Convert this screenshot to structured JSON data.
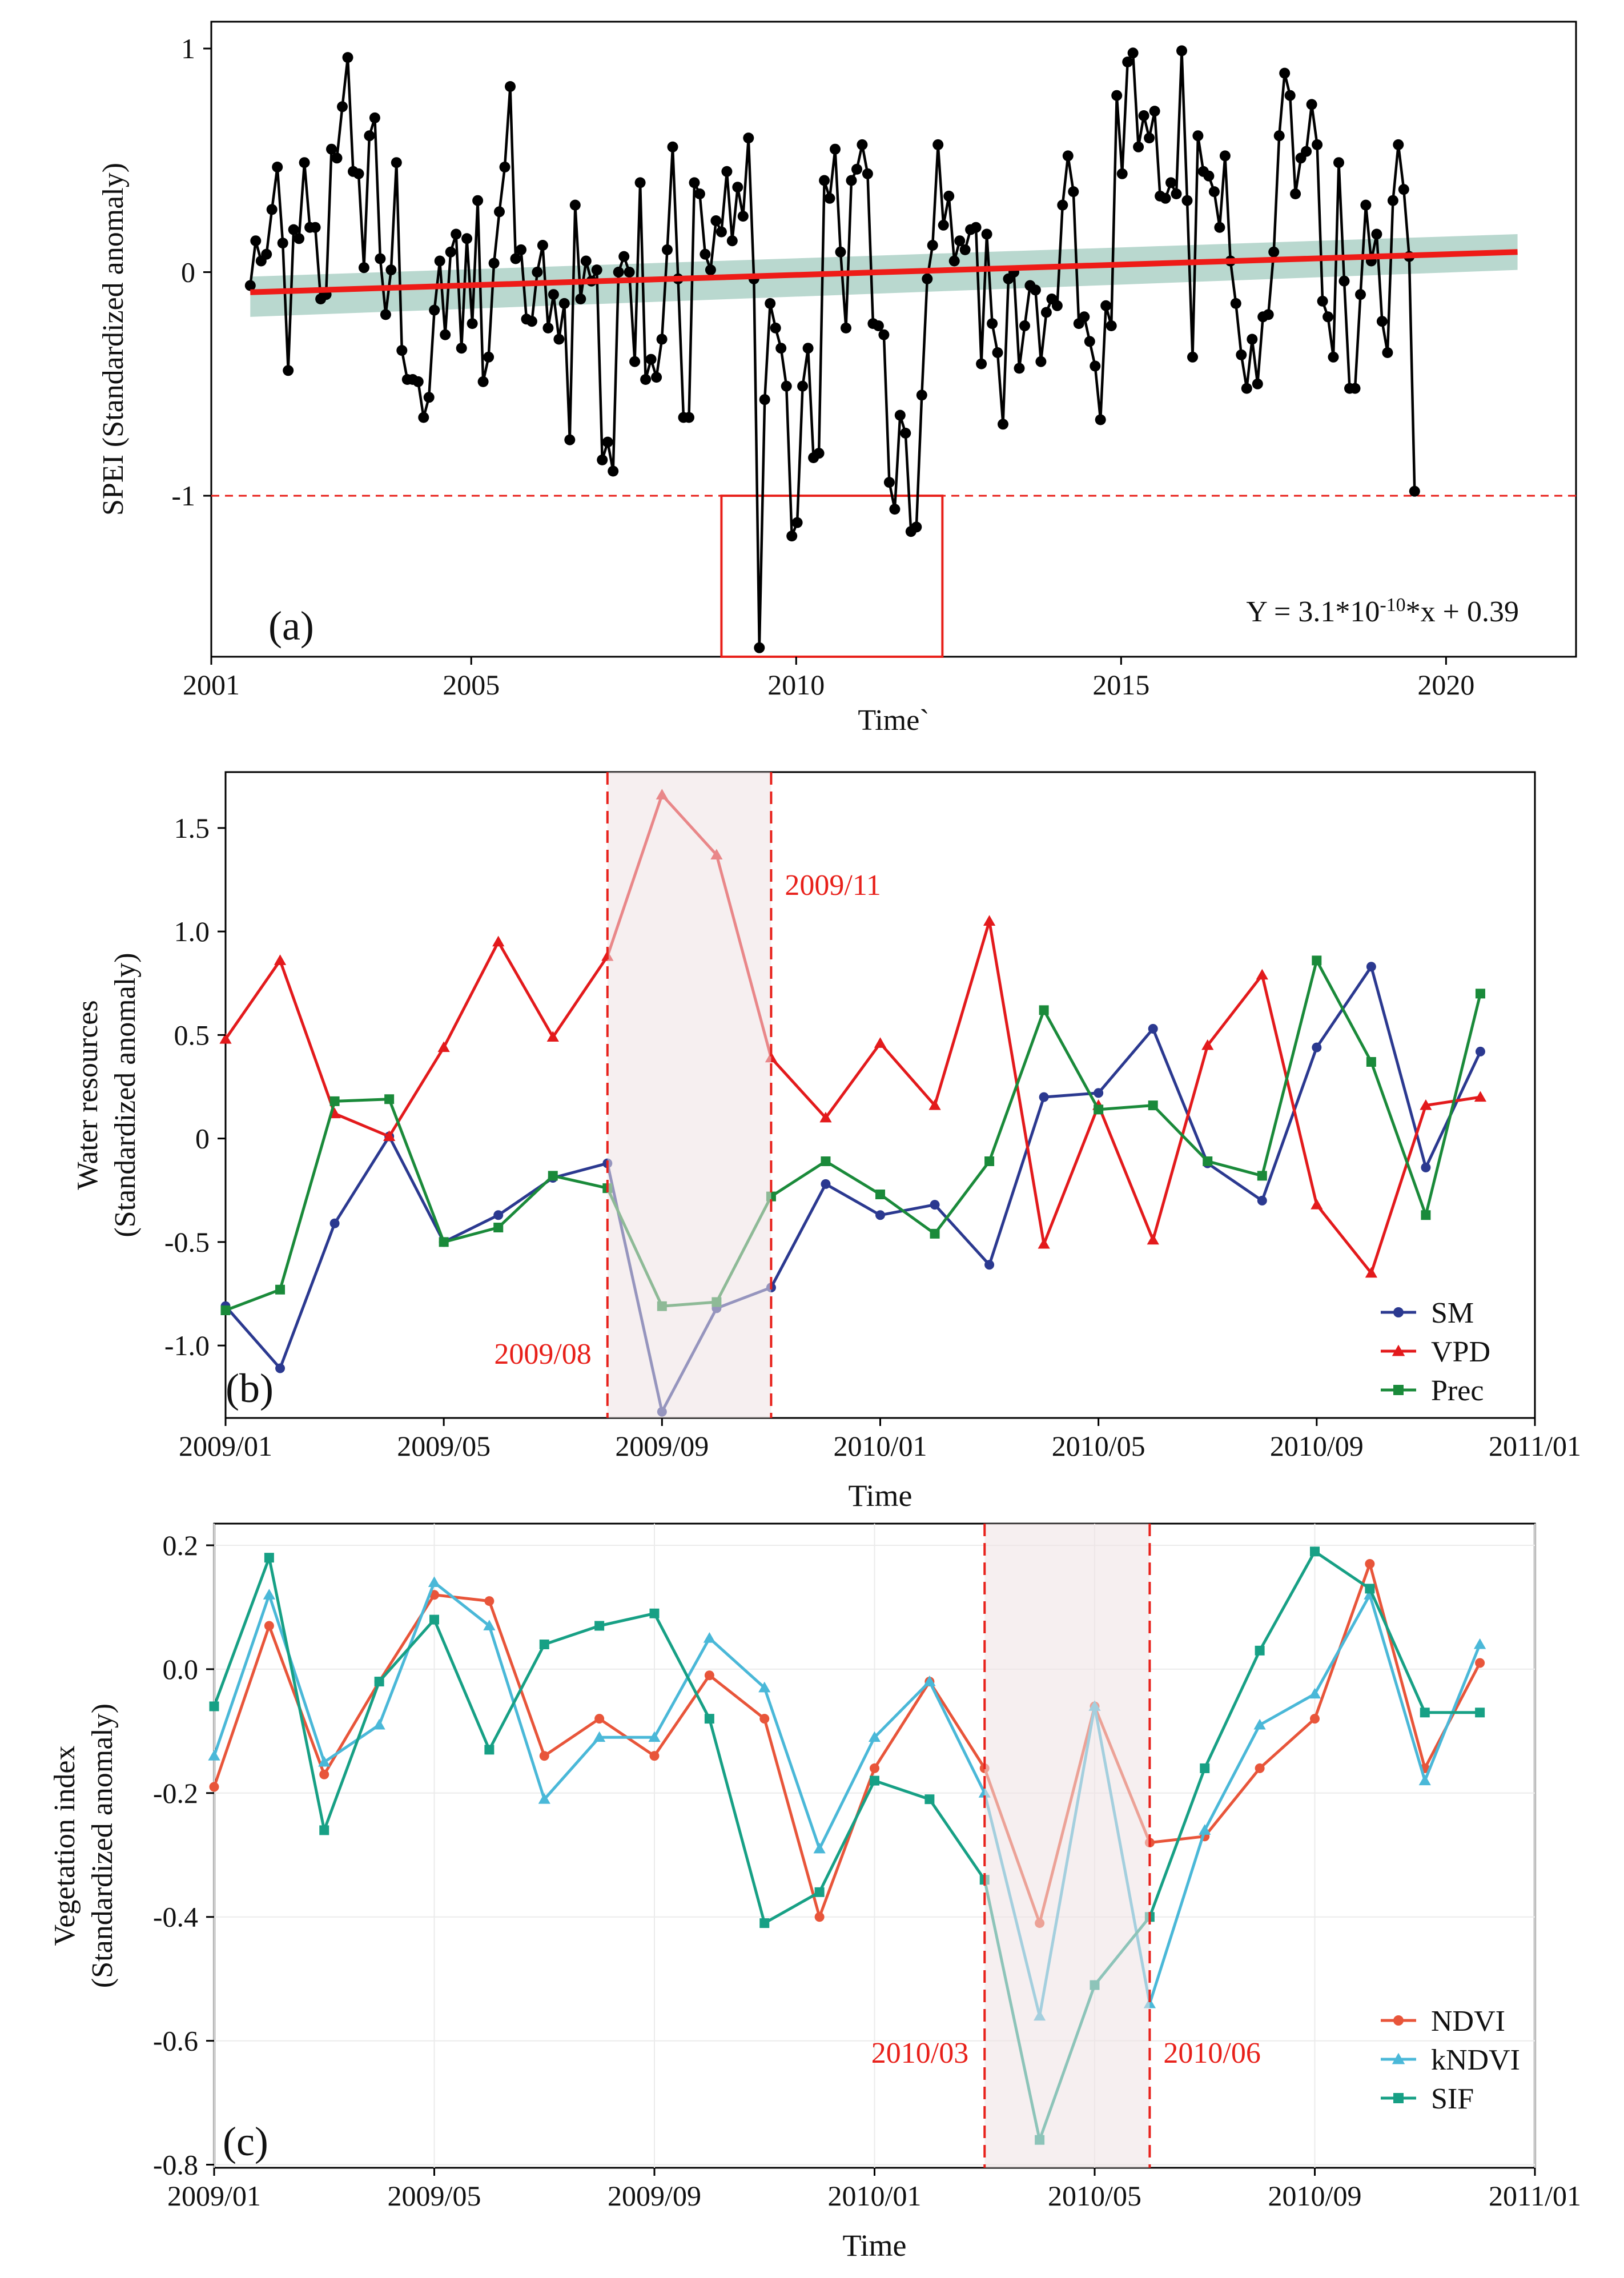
{
  "chart_data": [
    {
      "type": "line",
      "panel_label": "(a)",
      "title": "",
      "xlabel": "Time`",
      "ylabel": "SPEI (Standardized anomaly)",
      "xlim": [
        2001.0,
        2022.0
      ],
      "ylim": [
        -1.72,
        1.12
      ],
      "x_ticks": [
        2001,
        2005,
        2010,
        2015,
        2020
      ],
      "x_tick_labels": [
        "2001",
        "2005",
        "2010",
        "2015",
        "2020"
      ],
      "y_ticks": [
        -1,
        0,
        1
      ],
      "y_tick_labels": [
        "-1",
        "0",
        "1"
      ],
      "threshold": -1,
      "highlight_box": {
        "x": [
          2008.85,
          2012.25
        ],
        "y": [
          -1.0,
          -1.72
        ]
      },
      "trend": {
        "x": [
          2001.6,
          2021.1
        ],
        "y": [
          -0.09,
          0.09
        ]
      },
      "confidence_band": {
        "x": [
          2001.6,
          2021.1
        ],
        "upper": [
          -0.02,
          0.17
        ],
        "lower": [
          -0.2,
          0.01
        ]
      },
      "equation": {
        "prefix": "Y = 3.1*10",
        "exponent": "-10",
        "suffix": "*x + 0.39"
      },
      "series": [
        {
          "name": "SPEI",
          "color": "#000000",
          "start": 2001.6,
          "step": 0.08333,
          "values": [
            -0.06,
            0.14,
            0.05,
            0.08,
            0.28,
            0.47,
            0.13,
            -0.44,
            0.19,
            0.15,
            0.49,
            0.2,
            0.2,
            -0.12,
            -0.1,
            0.55,
            0.51,
            0.74,
            0.96,
            0.45,
            0.44,
            0.02,
            0.61,
            0.69,
            0.06,
            -0.19,
            0.01,
            0.49,
            -0.35,
            -0.48,
            -0.48,
            -0.49,
            -0.65,
            -0.56,
            -0.17,
            0.05,
            -0.28,
            0.09,
            0.17,
            -0.34,
            0.15,
            -0.23,
            0.32,
            -0.49,
            -0.38,
            0.04,
            0.27,
            0.47,
            0.83,
            0.06,
            0.1,
            -0.21,
            -0.22,
            0.0,
            0.12,
            -0.25,
            -0.1,
            -0.3,
            -0.14,
            -0.75,
            0.3,
            -0.12,
            0.05,
            -0.04,
            0.01,
            -0.84,
            -0.76,
            -0.89,
            0.0,
            0.07,
            0.0,
            -0.4,
            0.4,
            -0.48,
            -0.39,
            -0.47,
            -0.3,
            0.1,
            0.56,
            -0.03,
            -0.65,
            -0.65,
            0.4,
            0.35,
            0.08,
            0.01,
            0.23,
            0.18,
            0.45,
            0.14,
            0.38,
            0.25,
            0.6,
            -0.03,
            -1.68,
            -0.57,
            -0.14,
            -0.25,
            -0.34,
            -0.51,
            -1.18,
            -1.12,
            -0.51,
            -0.34,
            -0.83,
            -0.81,
            0.41,
            0.33,
            0.55,
            0.09,
            -0.25,
            0.41,
            0.46,
            0.57,
            0.44,
            -0.23,
            -0.24,
            -0.28,
            -0.94,
            -1.06,
            -0.64,
            -0.72,
            -1.16,
            -1.14,
            -0.55,
            -0.03,
            0.12,
            0.57,
            0.21,
            0.34,
            0.05,
            0.14,
            0.1,
            0.19,
            0.2,
            -0.41,
            0.17,
            -0.23,
            -0.36,
            -0.68,
            -0.03,
            0.0,
            -0.43,
            -0.24,
            -0.06,
            -0.08,
            -0.4,
            -0.18,
            -0.12,
            -0.15,
            0.3,
            0.52,
            0.36,
            -0.23,
            -0.2,
            -0.31,
            -0.42,
            -0.66,
            -0.15,
            -0.24,
            0.79,
            0.44,
            0.94,
            0.98,
            0.56,
            0.7,
            0.6,
            0.72,
            0.34,
            0.33,
            0.4,
            0.35,
            0.99,
            0.32,
            -0.38,
            0.61,
            0.45,
            0.43,
            0.36,
            0.2,
            0.52,
            0.05,
            -0.14,
            -0.37,
            -0.52,
            -0.3,
            -0.5,
            -0.2,
            -0.19,
            0.09,
            0.61,
            0.89,
            0.79,
            0.35,
            0.51,
            0.54,
            0.75,
            0.57,
            -0.13,
            -0.2,
            -0.38,
            0.49,
            -0.04,
            -0.52,
            -0.52,
            -0.1,
            0.3,
            0.05,
            0.17,
            -0.22,
            -0.36,
            0.32,
            0.57,
            0.37,
            0.07,
            -0.98
          ]
        }
      ]
    },
    {
      "type": "line",
      "panel_label": "(b)",
      "title": "",
      "xlabel": "Time",
      "ylabel": [
        "Water resources",
        "(Standardized anomaly)"
      ],
      "xlim": [
        0,
        24
      ],
      "ylim": [
        -1.35,
        1.77
      ],
      "x_ticks": [
        0,
        4,
        8,
        12,
        16,
        20,
        24
      ],
      "x_tick_labels": [
        "2009/01",
        "2009/05",
        "2009/09",
        "2010/01",
        "2010/05",
        "2010/09",
        "2011/01"
      ],
      "y_ticks": [
        -1.0,
        -0.5,
        0,
        0.5,
        1.0,
        1.5
      ],
      "y_tick_labels": [
        "-1.0",
        "-0.5",
        "0",
        "0.5",
        "1.0",
        "1.5"
      ],
      "shaded_period": {
        "x": [
          7.0,
          10.0
        ],
        "start_label": "2009/08",
        "end_label": "2009/11"
      },
      "categories": [
        "2009/01",
        "2009/02",
        "2009/03",
        "2009/04",
        "2009/05",
        "2009/06",
        "2009/07",
        "2009/08",
        "2009/09",
        "2009/10",
        "2009/11",
        "2009/12",
        "2010/01",
        "2010/02",
        "2010/03",
        "2010/04",
        "2010/05",
        "2010/06",
        "2010/07",
        "2010/08",
        "2010/09",
        "2010/10",
        "2010/11",
        "2010/12"
      ],
      "x": [
        0.0,
        1.0,
        2.0,
        3.0,
        4.0,
        5.0,
        6.0,
        7.0,
        8.0,
        9.0,
        10.0,
        11.0,
        12.0,
        13.0,
        14.0,
        15.0,
        16.0,
        17.0,
        18.0,
        19.0,
        20.0,
        21.0,
        22.0,
        23.0
      ],
      "legend_position": "bottom-right",
      "series": [
        {
          "name": "SM",
          "color": "#2b3990",
          "marker": "circle",
          "values": [
            -0.81,
            -1.11,
            -0.41,
            0.01,
            -0.5,
            -0.37,
            -0.19,
            -0.12,
            -1.32,
            -0.82,
            -0.72,
            -0.22,
            -0.37,
            -0.32,
            -0.61,
            0.2,
            0.22,
            0.53,
            -0.12,
            -0.3,
            0.44,
            0.83,
            -0.14,
            0.42
          ]
        },
        {
          "name": "VPD",
          "color": "#e31a1c",
          "marker": "triangle",
          "values": [
            0.48,
            0.86,
            0.12,
            0.01,
            0.44,
            0.95,
            0.49,
            0.88,
            1.66,
            1.37,
            0.39,
            0.1,
            0.46,
            0.16,
            1.05,
            -0.51,
            0.16,
            -0.49,
            0.45,
            0.79,
            -0.32,
            -0.65,
            0.16,
            0.2
          ]
        },
        {
          "name": "Prec",
          "color": "#1a8a3a",
          "marker": "square",
          "values": [
            -0.83,
            -0.73,
            0.18,
            0.19,
            -0.5,
            -0.43,
            -0.18,
            -0.24,
            -0.81,
            -0.79,
            -0.28,
            -0.11,
            -0.27,
            -0.46,
            -0.11,
            0.62,
            0.14,
            0.16,
            -0.11,
            -0.18,
            0.86,
            0.37,
            -0.37,
            0.7
          ]
        }
      ]
    },
    {
      "type": "line",
      "panel_label": "(c)",
      "title": "",
      "xlabel": "Time",
      "ylabel": [
        "Vegetation index",
        "(Standardized anomaly)"
      ],
      "xlim": [
        0,
        24
      ],
      "ylim": [
        -0.805,
        0.235
      ],
      "x_ticks": [
        0,
        4,
        8,
        12,
        16,
        20,
        24
      ],
      "x_tick_labels": [
        "2009/01",
        "2009/05",
        "2009/09",
        "2010/01",
        "2010/05",
        "2010/09",
        "2011/01"
      ],
      "y_ticks": [
        -0.8,
        -0.6,
        -0.4,
        -0.2,
        0.0,
        0.2
      ],
      "y_tick_labels": [
        "-0.8",
        "-0.6",
        "-0.4",
        "-0.2",
        "0.0",
        "0.2"
      ],
      "shaded_period": {
        "x": [
          14.0,
          17.0
        ],
        "start_label": "2010/03",
        "end_label": "2010/06"
      },
      "categories": [
        "2009/01",
        "2009/02",
        "2009/03",
        "2009/04",
        "2009/05",
        "2009/06",
        "2009/07",
        "2009/08",
        "2009/09",
        "2009/10",
        "2009/11",
        "2009/12",
        "2010/01",
        "2010/02",
        "2010/03",
        "2010/04",
        "2010/05",
        "2010/06",
        "2010/07",
        "2010/08",
        "2010/09",
        "2010/10",
        "2010/11",
        "2010/12"
      ],
      "x": [
        0.0,
        1.0,
        2.0,
        3.0,
        4.0,
        5.0,
        6.0,
        7.0,
        8.0,
        9.0,
        10.0,
        11.0,
        12.0,
        13.0,
        14.0,
        15.0,
        16.0,
        17.0,
        18.0,
        19.0,
        20.0,
        21.0,
        22.0,
        23.0
      ],
      "legend_position": "bottom-right",
      "series": [
        {
          "name": "NDVI",
          "color": "#e8553a",
          "marker": "circle",
          "values": [
            -0.19,
            0.07,
            -0.17,
            -0.02,
            0.12,
            0.11,
            -0.14,
            -0.08,
            -0.14,
            -0.01,
            -0.08,
            -0.4,
            -0.16,
            -0.02,
            -0.16,
            -0.41,
            -0.06,
            -0.28,
            -0.27,
            -0.16,
            -0.08,
            0.17,
            -0.16,
            0.01
          ]
        },
        {
          "name": "kNDVI",
          "color": "#4ab8d8",
          "marker": "triangle",
          "values": [
            -0.14,
            0.12,
            -0.15,
            -0.09,
            0.14,
            0.07,
            -0.21,
            -0.11,
            -0.11,
            0.05,
            -0.03,
            -0.29,
            -0.11,
            -0.02,
            -0.2,
            -0.56,
            -0.06,
            -0.54,
            -0.26,
            -0.09,
            -0.04,
            0.12,
            -0.18,
            0.04
          ]
        },
        {
          "name": "SIF",
          "color": "#17a085",
          "marker": "square",
          "values": [
            -0.06,
            0.18,
            -0.26,
            -0.02,
            0.08,
            -0.13,
            0.04,
            0.07,
            0.09,
            -0.08,
            -0.41,
            -0.36,
            -0.18,
            -0.21,
            -0.34,
            -0.76,
            -0.51,
            -0.4,
            -0.16,
            0.03,
            0.19,
            0.13,
            -0.07,
            -0.07
          ]
        }
      ]
    }
  ]
}
